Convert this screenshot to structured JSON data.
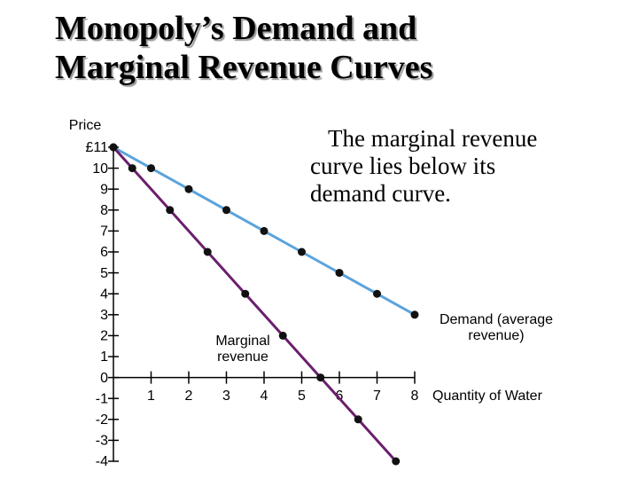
{
  "chart_data": {
    "type": "line",
    "title": "Monopoly’s Demand and Marginal Revenue Curves",
    "annotation": "The marginal revenue curve lies below its demand curve.",
    "y_label": "Price",
    "x_label": "Quantity of Water",
    "xlim": [
      0,
      8
    ],
    "ylim": [
      -4,
      11
    ],
    "xticks": [
      1,
      2,
      3,
      4,
      5,
      6,
      7,
      8
    ],
    "yticks": [
      {
        "value": 11,
        "label": "£11"
      },
      10,
      9,
      8,
      7,
      6,
      5,
      4,
      3,
      2,
      1,
      0,
      -1,
      -2,
      -3,
      -4
    ],
    "series": [
      {
        "name": "Demand (average revenue)",
        "color": "#5ba3dc",
        "x": [
          0,
          1,
          2,
          3,
          4,
          5,
          6,
          7,
          8
        ],
        "values": [
          11,
          10,
          9,
          8,
          7,
          6,
          5,
          4,
          3
        ]
      },
      {
        "name": "Marginal revenue",
        "color": "#6b1f6e",
        "x": [
          0,
          0.5,
          1.5,
          2.5,
          3.5,
          4.5,
          5.5,
          6.5,
          7.5
        ],
        "values": [
          11,
          10,
          8,
          6,
          4,
          2,
          0,
          -2,
          -4
        ]
      }
    ]
  }
}
